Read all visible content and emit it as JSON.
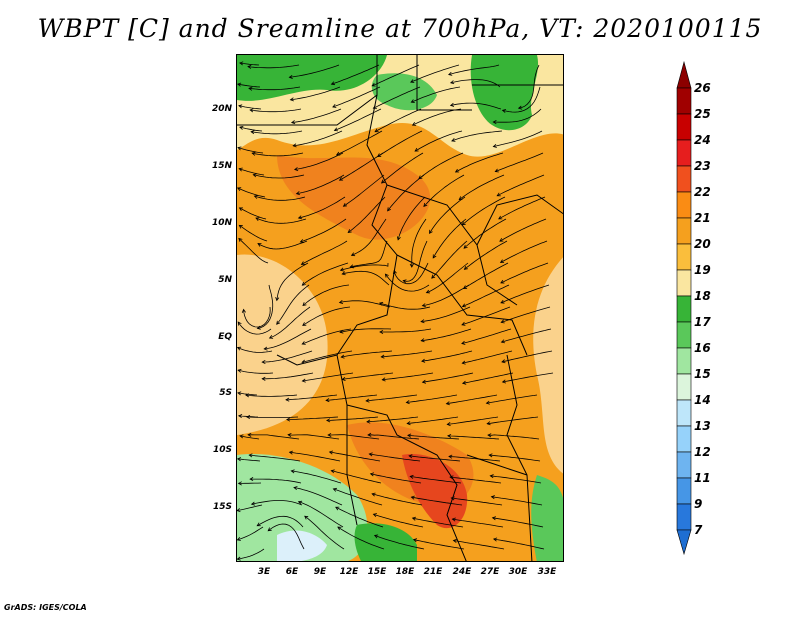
{
  "title": "WBPT [C] and Sreamline at 700hPa, VT: 2020100115",
  "credit": "GrADS: IGES/COLA",
  "lat_labels": [
    "20N",
    "15N",
    "10N",
    "5N",
    "EQ",
    "5S",
    "10S",
    "15S"
  ],
  "lon_labels": [
    "3E",
    "6E",
    "9E",
    "12E",
    "15E",
    "18E",
    "21E",
    "24E",
    "27E",
    "30E",
    "33E"
  ],
  "colorbar": {
    "labels": [
      "26",
      "25",
      "24",
      "23",
      "22",
      "21",
      "20",
      "19",
      "18",
      "17",
      "16",
      "15",
      "14",
      "13",
      "12",
      "11",
      "9",
      "7"
    ],
    "colors": [
      "#a00000",
      "#c80000",
      "#e61e1e",
      "#f0501e",
      "#fa8c14",
      "#f5a01e",
      "#fabe3c",
      "#fae6a0",
      "#37b437",
      "#5ac85a",
      "#a0e6a0",
      "#dcf5dc",
      "#bee6fa",
      "#96d2fa",
      "#6eb4f0",
      "#4696e6",
      "#2878dc"
    ],
    "top_color": "#8c0000",
    "bottom_color": "#1e6ed2"
  },
  "palette": {
    "orange": "#f5a01e",
    "dark_orange": "#f0821e",
    "red_orange": "#e6461e",
    "light_yellow": "#fae6a0",
    "tan": "#fad28c",
    "green": "#37b437",
    "light_green": "#a0e6a0",
    "pale_blue": "#dcf0fa"
  }
}
